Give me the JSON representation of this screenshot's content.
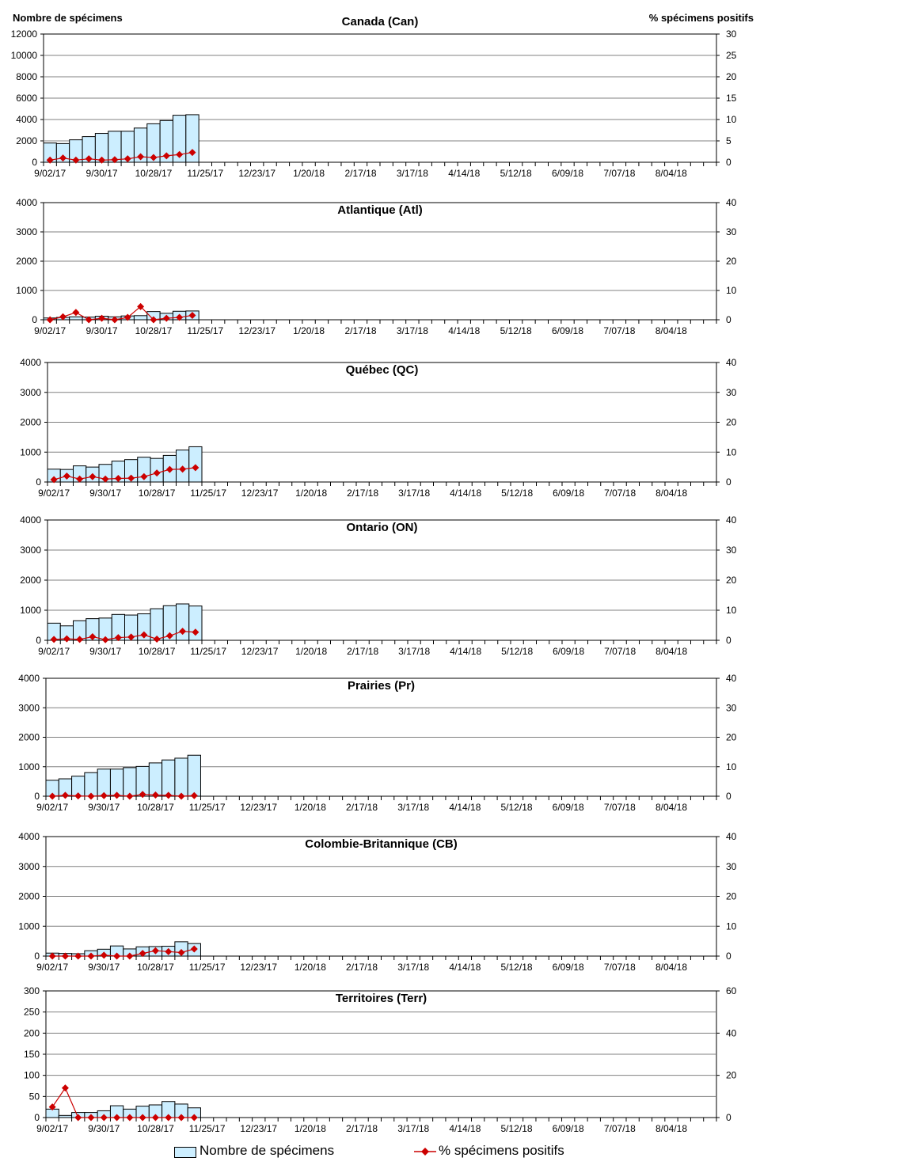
{
  "axis_titles": {
    "left": "Nombre de spécimens",
    "right": "% spécimens positifs"
  },
  "legend": {
    "bar_label": "Nombre de spécimens",
    "line_label": "% spécimens positifs"
  },
  "colors": {
    "bar_fill": "#cceeff",
    "bar_stroke": "#000000",
    "line": "#cc0000",
    "grid": "#808080"
  },
  "chart_data": [
    {
      "type": "bar",
      "title": "Canada (Can)",
      "x_tick_labels": [
        "9/02/17",
        "9/30/17",
        "10/28/17",
        "11/25/17",
        "12/23/17",
        "1/20/18",
        "2/17/18",
        "3/17/18",
        "4/14/18",
        "5/12/18",
        "6/09/18",
        "7/07/18",
        "8/04/18"
      ],
      "weeks_total": 52,
      "y_left": {
        "min": 0,
        "max": 12000,
        "ticks": [
          0,
          2000,
          4000,
          6000,
          8000,
          10000,
          12000
        ]
      },
      "y_right": {
        "min": 0,
        "max": 30,
        "ticks": [
          0,
          5,
          10,
          15,
          20,
          25,
          30
        ]
      },
      "series": [
        {
          "name": "Nombre de spécimens",
          "axis": "left",
          "values": [
            1800,
            1750,
            2100,
            2400,
            2700,
            2900,
            2900,
            3200,
            3600,
            3900,
            4400,
            4450
          ]
        },
        {
          "name": "% spécimens positifs",
          "axis": "right",
          "values": [
            0.5,
            1,
            0.5,
            0.8,
            0.5,
            0.6,
            0.8,
            1.3,
            1.1,
            1.5,
            1.8,
            2.3
          ]
        }
      ]
    },
    {
      "type": "bar",
      "title": "Atlantique (Atl)",
      "x_tick_labels": [
        "9/02/17",
        "9/30/17",
        "10/28/17",
        "11/25/17",
        "12/23/17",
        "1/20/18",
        "2/17/18",
        "3/17/18",
        "4/14/18",
        "5/12/18",
        "6/09/18",
        "7/07/18",
        "8/04/18"
      ],
      "weeks_total": 52,
      "y_left": {
        "min": 0,
        "max": 4000,
        "ticks": [
          0,
          1000,
          2000,
          3000,
          4000
        ]
      },
      "y_right": {
        "min": 0,
        "max": 40,
        "ticks": [
          0,
          10,
          20,
          30,
          40
        ]
      },
      "series": [
        {
          "name": "Nombre de spécimens",
          "axis": "left",
          "values": [
            60,
            80,
            100,
            90,
            120,
            100,
            130,
            140,
            280,
            220,
            290,
            300
          ]
        },
        {
          "name": "% spécimens positifs",
          "axis": "right",
          "values": [
            0,
            1,
            2.5,
            0,
            0.5,
            0,
            0.8,
            4.5,
            0,
            0.5,
            0.8,
            1.5
          ]
        }
      ]
    },
    {
      "type": "bar",
      "title": "Québec (QC)",
      "x_tick_labels": [
        "9/02/17",
        "9/30/17",
        "10/28/17",
        "11/25/17",
        "12/23/17",
        "1/20/18",
        "2/17/18",
        "3/17/18",
        "4/14/18",
        "5/12/18",
        "6/09/18",
        "7/07/18",
        "8/04/18"
      ],
      "weeks_total": 52,
      "y_left": {
        "min": 0,
        "max": 4000,
        "ticks": [
          0,
          1000,
          2000,
          3000,
          4000
        ]
      },
      "y_right": {
        "min": 0,
        "max": 40,
        "ticks": [
          0,
          10,
          20,
          30,
          40
        ]
      },
      "series": [
        {
          "name": "Nombre de spécimens",
          "axis": "left",
          "values": [
            430,
            420,
            540,
            500,
            590,
            700,
            750,
            830,
            790,
            890,
            1070,
            1180
          ]
        },
        {
          "name": "% spécimens positifs",
          "axis": "right",
          "values": [
            0.8,
            2,
            1,
            1.8,
            1,
            1.2,
            1.3,
            1.8,
            3,
            4.2,
            4.3,
            4.8
          ]
        }
      ]
    },
    {
      "type": "bar",
      "title": "Ontario (ON)",
      "x_tick_labels": [
        "9/02/17",
        "9/30/17",
        "10/28/17",
        "11/25/17",
        "12/23/17",
        "1/20/18",
        "2/17/18",
        "3/17/18",
        "4/14/18",
        "5/12/18",
        "6/09/18",
        "7/07/18",
        "8/04/18"
      ],
      "weeks_total": 52,
      "y_left": {
        "min": 0,
        "max": 4000,
        "ticks": [
          0,
          1000,
          2000,
          3000,
          4000
        ]
      },
      "y_right": {
        "min": 0,
        "max": 40,
        "ticks": [
          0,
          10,
          20,
          30,
          40
        ]
      },
      "series": [
        {
          "name": "Nombre de spécimens",
          "axis": "left",
          "values": [
            570,
            480,
            650,
            720,
            740,
            860,
            840,
            880,
            1050,
            1150,
            1210,
            1140
          ]
        },
        {
          "name": "% spécimens positifs",
          "axis": "right",
          "values": [
            0.3,
            0.5,
            0.3,
            1.2,
            0.2,
            0.9,
            1.1,
            1.8,
            0.4,
            1.5,
            3,
            2.7
          ]
        }
      ]
    },
    {
      "type": "bar",
      "title": "Prairies (Pr)",
      "x_tick_labels": [
        "9/02/17",
        "9/30/17",
        "10/28/17",
        "11/25/17",
        "12/23/17",
        "1/20/18",
        "2/17/18",
        "3/17/18",
        "4/14/18",
        "5/12/18",
        "6/09/18",
        "7/07/18",
        "8/04/18"
      ],
      "weeks_total": 52,
      "y_left": {
        "min": 0,
        "max": 4000,
        "ticks": [
          0,
          1000,
          2000,
          3000,
          4000
        ]
      },
      "y_right": {
        "min": 0,
        "max": 40,
        "ticks": [
          0,
          10,
          20,
          30,
          40
        ]
      },
      "series": [
        {
          "name": "Nombre de spécimens",
          "axis": "left",
          "values": [
            540,
            590,
            680,
            800,
            920,
            920,
            970,
            1010,
            1130,
            1230,
            1290,
            1390
          ]
        },
        {
          "name": "% spécimens positifs",
          "axis": "right",
          "values": [
            0,
            0.3,
            0.1,
            0,
            0.2,
            0.3,
            0,
            0.6,
            0.4,
            0.3,
            0,
            0.2
          ]
        }
      ]
    },
    {
      "type": "bar",
      "title": "Colombie-Britannique (CB)",
      "x_tick_labels": [
        "9/02/17",
        "9/30/17",
        "10/28/17",
        "11/25/17",
        "12/23/17",
        "1/20/18",
        "2/17/18",
        "3/17/18",
        "4/14/18",
        "5/12/18",
        "6/09/18",
        "7/07/18",
        "8/04/18"
      ],
      "weeks_total": 52,
      "y_left": {
        "min": 0,
        "max": 4000,
        "ticks": [
          0,
          1000,
          2000,
          3000,
          4000
        ]
      },
      "y_right": {
        "min": 0,
        "max": 40,
        "ticks": [
          0,
          10,
          20,
          30,
          40
        ]
      },
      "series": [
        {
          "name": "Nombre de spécimens",
          "axis": "left",
          "values": [
            100,
            90,
            80,
            180,
            230,
            340,
            240,
            310,
            320,
            330,
            480,
            420
          ]
        },
        {
          "name": "% spécimens positifs",
          "axis": "right",
          "values": [
            0,
            0,
            0,
            0,
            0.3,
            0,
            0,
            0.9,
            1.8,
            1.5,
            1.2,
            2.4
          ]
        }
      ]
    },
    {
      "type": "bar",
      "title": "Territoires (Terr)",
      "x_tick_labels": [
        "9/02/17",
        "9/30/17",
        "10/28/17",
        "11/25/17",
        "12/23/17",
        "1/20/18",
        "2/17/18",
        "3/17/18",
        "4/14/18",
        "5/12/18",
        "6/09/18",
        "7/07/18",
        "8/04/18"
      ],
      "weeks_total": 52,
      "y_left": {
        "min": 0,
        "max": 300,
        "ticks": [
          0,
          50,
          100,
          150,
          200,
          250,
          300
        ]
      },
      "y_right": {
        "min": 0,
        "max": 60,
        "ticks": [
          0,
          20,
          40,
          60
        ]
      },
      "series": [
        {
          "name": "Nombre de spécimens",
          "axis": "left",
          "values": [
            20,
            5,
            12,
            12,
            16,
            28,
            20,
            27,
            30,
            38,
            32,
            23
          ]
        },
        {
          "name": "% spécimens positifs",
          "axis": "right",
          "values": [
            5,
            14,
            0,
            0,
            0,
            0,
            0,
            0,
            0,
            0,
            0,
            0
          ]
        }
      ]
    }
  ]
}
